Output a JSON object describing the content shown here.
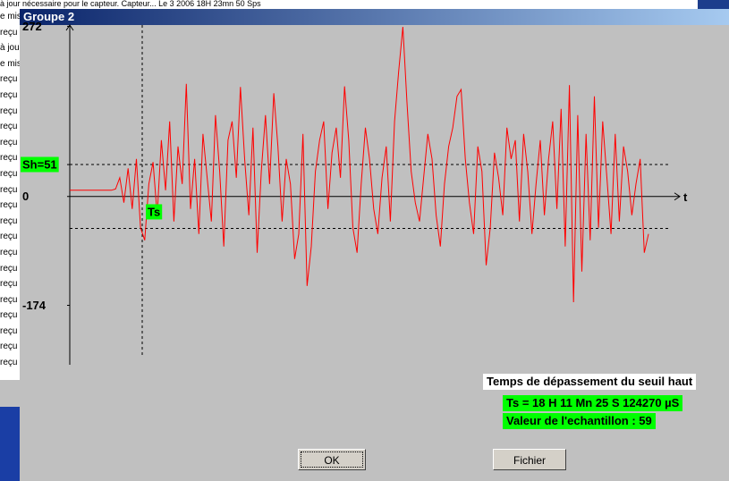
{
  "top_text": "à jour nécessaire pour le capteur. Capteur... Le 3 2006 18H 23mn 50 Sps",
  "side_list": [
    "e mis",
    "reçu",
    "à jou",
    "e mis",
    "reçu",
    "reçu",
    "reçu",
    "reçu",
    "reçu",
    "reçu",
    "reçu",
    "reçu",
    "reçu",
    "reçu",
    "reçu",
    "reçu",
    "reçu",
    "reçu",
    "reçu",
    "reçu",
    "reçu",
    "reçu",
    "reçu"
  ],
  "window": {
    "title": "Groupe 2"
  },
  "chart_data": {
    "type": "line",
    "color": "#ff0000",
    "x_label": "t",
    "marker_label": "Ts",
    "ylim": [
      -269,
      274
    ],
    "yticks": [
      272,
      {
        "value": 51,
        "label": "Sh=51"
      },
      0,
      -174
    ],
    "threshold_lines": [
      51,
      -51
    ],
    "values": [
      10,
      10,
      10,
      10,
      10,
      10,
      10,
      10,
      10,
      10,
      10,
      12,
      30,
      -10,
      45,
      -20,
      60,
      -50,
      -70,
      20,
      55,
      -30,
      90,
      10,
      120,
      -40,
      80,
      20,
      180,
      -20,
      60,
      -60,
      100,
      30,
      -40,
      130,
      40,
      -80,
      90,
      120,
      30,
      175,
      60,
      -30,
      110,
      -90,
      40,
      130,
      20,
      165,
      80,
      -40,
      60,
      20,
      -100,
      -60,
      100,
      -143,
      -80,
      40,
      90,
      120,
      -20,
      70,
      110,
      30,
      176,
      90,
      -50,
      -90,
      20,
      110,
      60,
      -20,
      -60,
      30,
      80,
      -40,
      120,
      200,
      271,
      150,
      40,
      -10,
      -40,
      30,
      100,
      60,
      -30,
      -80,
      20,
      80,
      110,
      160,
      171,
      60,
      -10,
      -60,
      80,
      40,
      -110,
      -50,
      70,
      30,
      -30,
      110,
      60,
      90,
      -40,
      100,
      40,
      -60,
      20,
      90,
      -30,
      60,
      120,
      -20,
      140,
      -80,
      178,
      -169,
      130,
      -120,
      100,
      -70,
      160,
      -50,
      120,
      30,
      -60,
      100,
      -40,
      80,
      40,
      -30,
      20,
      60,
      -90,
      -60
    ]
  },
  "info": {
    "heading": "Temps de dépassement du seuil haut",
    "time": "Ts = 18 H 11 Mn 25 S 124270 µS",
    "sample": "Valeur de l'echantillon : 59"
  },
  "buttons": {
    "ok": "OK",
    "file": "Fichier"
  }
}
